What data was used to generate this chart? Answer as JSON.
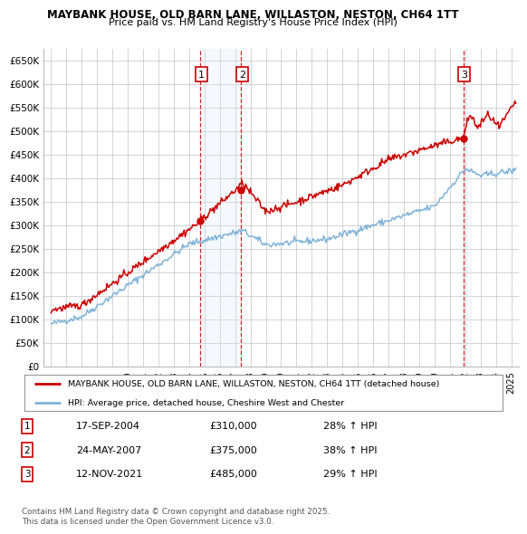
{
  "title1": "MAYBANK HOUSE, OLD BARN LANE, WILLASTON, NESTON, CH64 1TT",
  "title2": "Price paid vs. HM Land Registry's House Price Index (HPI)",
  "xlim": [
    1994.5,
    2025.5
  ],
  "ylim": [
    0,
    675000
  ],
  "yticks": [
    0,
    50000,
    100000,
    150000,
    200000,
    250000,
    300000,
    350000,
    400000,
    450000,
    500000,
    550000,
    600000,
    650000
  ],
  "ytick_labels": [
    "£0",
    "£50K",
    "£100K",
    "£150K",
    "£200K",
    "£250K",
    "£300K",
    "£350K",
    "£400K",
    "£450K",
    "£500K",
    "£550K",
    "£600K",
    "£650K"
  ],
  "xticks": [
    1995,
    1996,
    1997,
    1998,
    1999,
    2000,
    2001,
    2002,
    2003,
    2004,
    2005,
    2006,
    2007,
    2008,
    2009,
    2010,
    2011,
    2012,
    2013,
    2014,
    2015,
    2016,
    2017,
    2018,
    2019,
    2020,
    2021,
    2022,
    2023,
    2024,
    2025
  ],
  "sale_points": [
    {
      "num": 1,
      "year": 2004.72,
      "price": 310000,
      "date": "17-SEP-2004",
      "hpi_pct": "28% ↑ HPI"
    },
    {
      "num": 2,
      "year": 2007.39,
      "price": 375000,
      "date": "24-MAY-2007",
      "hpi_pct": "38% ↑ HPI"
    },
    {
      "num": 3,
      "year": 2021.87,
      "price": 485000,
      "date": "12-NOV-2021",
      "hpi_pct": "29% ↑ HPI"
    }
  ],
  "red_line_color": "#cc0000",
  "blue_line_color": "#7fb3d9",
  "sale_shade_color": "#d8eaf8",
  "grid_color": "#cccccc",
  "background_color": "#ffffff",
  "legend_label_red": "MAYBANK HOUSE, OLD BARN LANE, WILLASTON, NESTON, CH64 1TT (detached house)",
  "legend_label_blue": "HPI: Average price, detached house, Cheshire West and Chester",
  "footer": "Contains HM Land Registry data © Crown copyright and database right 2025.\nThis data is licensed under the Open Government Licence v3.0."
}
